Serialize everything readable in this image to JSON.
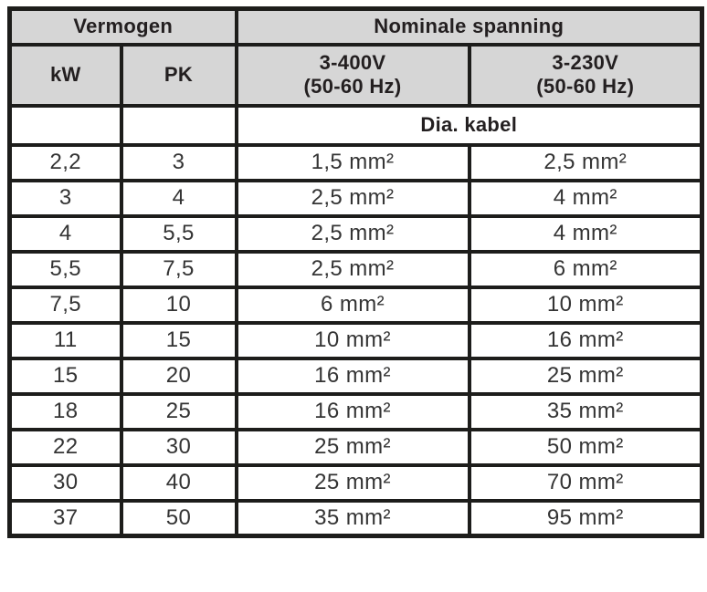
{
  "table": {
    "group_headers": {
      "vermogen": "Vermogen",
      "nominale_spanning": "Nominale spanning"
    },
    "column_headers": {
      "kw": "kW",
      "pk": "PK",
      "v400": "3-400V\n(50-60 Hz)",
      "v230": "3-230V\n(50-60 Hz)"
    },
    "subheader": "Dia. kabel",
    "rows": [
      {
        "kw": "2,2",
        "pk": "3",
        "v400": "1,5 mm²",
        "v230": "2,5 mm²"
      },
      {
        "kw": "3",
        "pk": "4",
        "v400": "2,5 mm²",
        "v230": "4 mm²"
      },
      {
        "kw": "4",
        "pk": "5,5",
        "v400": "2,5 mm²",
        "v230": "4 mm²"
      },
      {
        "kw": "5,5",
        "pk": "7,5",
        "v400": "2,5 mm²",
        "v230": "6 mm²"
      },
      {
        "kw": "7,5",
        "pk": "10",
        "v400": "6 mm²",
        "v230": "10 mm²"
      },
      {
        "kw": "11",
        "pk": "15",
        "v400": "10 mm²",
        "v230": "16 mm²"
      },
      {
        "kw": "15",
        "pk": "20",
        "v400": "16 mm²",
        "v230": "25 mm²"
      },
      {
        "kw": "18",
        "pk": "25",
        "v400": "16 mm²",
        "v230": "35 mm²"
      },
      {
        "kw": "22",
        "pk": "30",
        "v400": "25 mm²",
        "v230": "50 mm²"
      },
      {
        "kw": "30",
        "pk": "40",
        "v400": "25 mm²",
        "v230": "70 mm²"
      },
      {
        "kw": "37",
        "pk": "50",
        "v400": "35 mm²",
        "v230": "95 mm²"
      }
    ]
  },
  "colors": {
    "header_background": "#d6d6d6",
    "border": "#1d1d1b",
    "text": "#231f20",
    "background": "#ffffff"
  },
  "chart_data": {
    "type": "table",
    "title": "Vermogen / Nominale spanning — Dia. kabel",
    "columns": [
      "Vermogen kW",
      "Vermogen PK",
      "Nominale spanning 3-400V (50-60 Hz) Dia. kabel",
      "Nominale spanning 3-230V (50-60 Hz) Dia. kabel"
    ],
    "rows": [
      [
        "2,2",
        "3",
        "1,5 mm²",
        "2,5 mm²"
      ],
      [
        "3",
        "4",
        "2,5 mm²",
        "4 mm²"
      ],
      [
        "4",
        "5,5",
        "2,5 mm²",
        "4 mm²"
      ],
      [
        "5,5",
        "7,5",
        "2,5 mm²",
        "6 mm²"
      ],
      [
        "7,5",
        "10",
        "6 mm²",
        "10 mm²"
      ],
      [
        "11",
        "15",
        "10 mm²",
        "16 mm²"
      ],
      [
        "15",
        "20",
        "16 mm²",
        "25 mm²"
      ],
      [
        "18",
        "25",
        "16 mm²",
        "35 mm²"
      ],
      [
        "22",
        "30",
        "25 mm²",
        "50 mm²"
      ],
      [
        "30",
        "40",
        "25 mm²",
        "70 mm²"
      ],
      [
        "37",
        "50",
        "35 mm²",
        "95 mm²"
      ]
    ]
  }
}
